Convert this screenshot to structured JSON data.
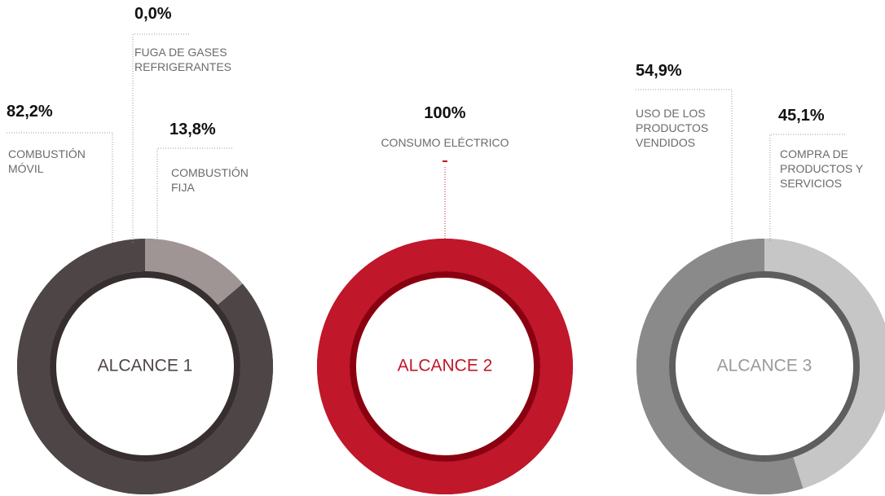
{
  "chart_data": [
    {
      "type": "donut",
      "title": "ALCANCE 1",
      "categories": [
        "COMBUSTIÓN MÓVIL",
        "FUGA DE GASES REFRIGERANTES",
        "COMBUSTIÓN FIJA"
      ],
      "values": [
        82.2,
        0.0,
        13.8
      ],
      "value_labels": [
        "82,2%",
        "0,0%",
        "13,8%"
      ],
      "colors": [
        "#4e4646",
        "#7a7070",
        "#a09595"
      ]
    },
    {
      "type": "donut",
      "title": "ALCANCE 2",
      "categories": [
        "CONSUMO ELÉCTRICO"
      ],
      "values": [
        100
      ],
      "value_labels": [
        "100%"
      ],
      "colors": [
        "#c0172a"
      ]
    },
    {
      "type": "donut",
      "title": "ALCANCE 3",
      "categories": [
        "USO DE LOS PRODUCTOS VENDIDOS",
        "COMPRA DE PRODUCTOS Y SERVICIOS"
      ],
      "values": [
        54.9,
        45.1
      ],
      "value_labels": [
        "54,9%",
        "45,1%"
      ],
      "colors": [
        "#8a8a8a",
        "#c6c6c6"
      ]
    }
  ]
}
